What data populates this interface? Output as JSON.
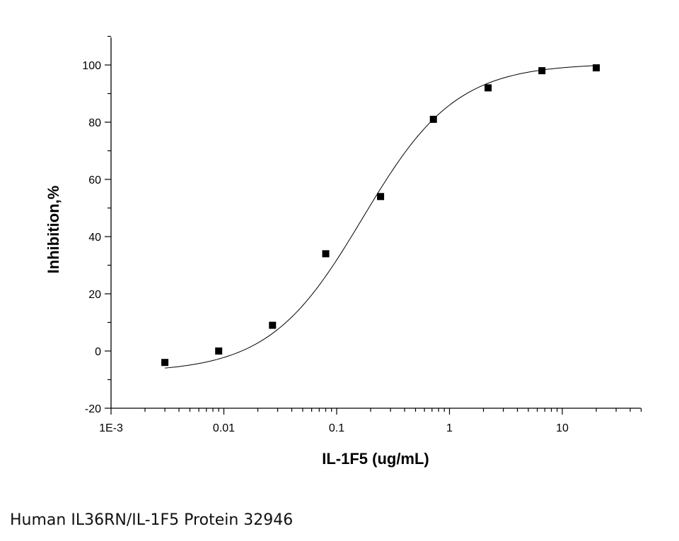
{
  "chart_data": {
    "type": "scatter",
    "x_scale": "log",
    "xlabel": "IL-1F5 (ug/mL)",
    "ylabel": "Inhibition,%",
    "xlim": [
      0.001,
      50
    ],
    "ylim": [
      -20,
      110
    ],
    "x_ticks": [
      {
        "value": 0.001,
        "label": "1E-3"
      },
      {
        "value": 0.01,
        "label": "0.01"
      },
      {
        "value": 0.1,
        "label": "0.1"
      },
      {
        "value": 1,
        "label": "1"
      },
      {
        "value": 10,
        "label": "10"
      }
    ],
    "y_ticks": [
      {
        "value": -20,
        "label": "-20"
      },
      {
        "value": 0,
        "label": "0"
      },
      {
        "value": 20,
        "label": "20"
      },
      {
        "value": 40,
        "label": "40"
      },
      {
        "value": 60,
        "label": "60"
      },
      {
        "value": 80,
        "label": "80"
      },
      {
        "value": 100,
        "label": "100"
      }
    ],
    "series": [
      {
        "marker": "square",
        "color": "#000000",
        "points": [
          {
            "x": 0.003,
            "y": -4
          },
          {
            "x": 0.009,
            "y": 0
          },
          {
            "x": 0.027,
            "y": 9
          },
          {
            "x": 0.08,
            "y": 34
          },
          {
            "x": 0.245,
            "y": 54
          },
          {
            "x": 0.72,
            "y": 81
          },
          {
            "x": 2.2,
            "y": 92
          },
          {
            "x": 6.6,
            "y": 98
          },
          {
            "x": 20,
            "y": 99
          }
        ]
      }
    ],
    "fit_curve": {
      "model": "4PL",
      "bottom": -7.5,
      "top": 100.5,
      "ec50": 0.17,
      "hill": 1.05,
      "x_range": [
        0.003,
        20
      ]
    }
  },
  "caption": "Human IL36RN/IL-1F5 Protein 32946"
}
